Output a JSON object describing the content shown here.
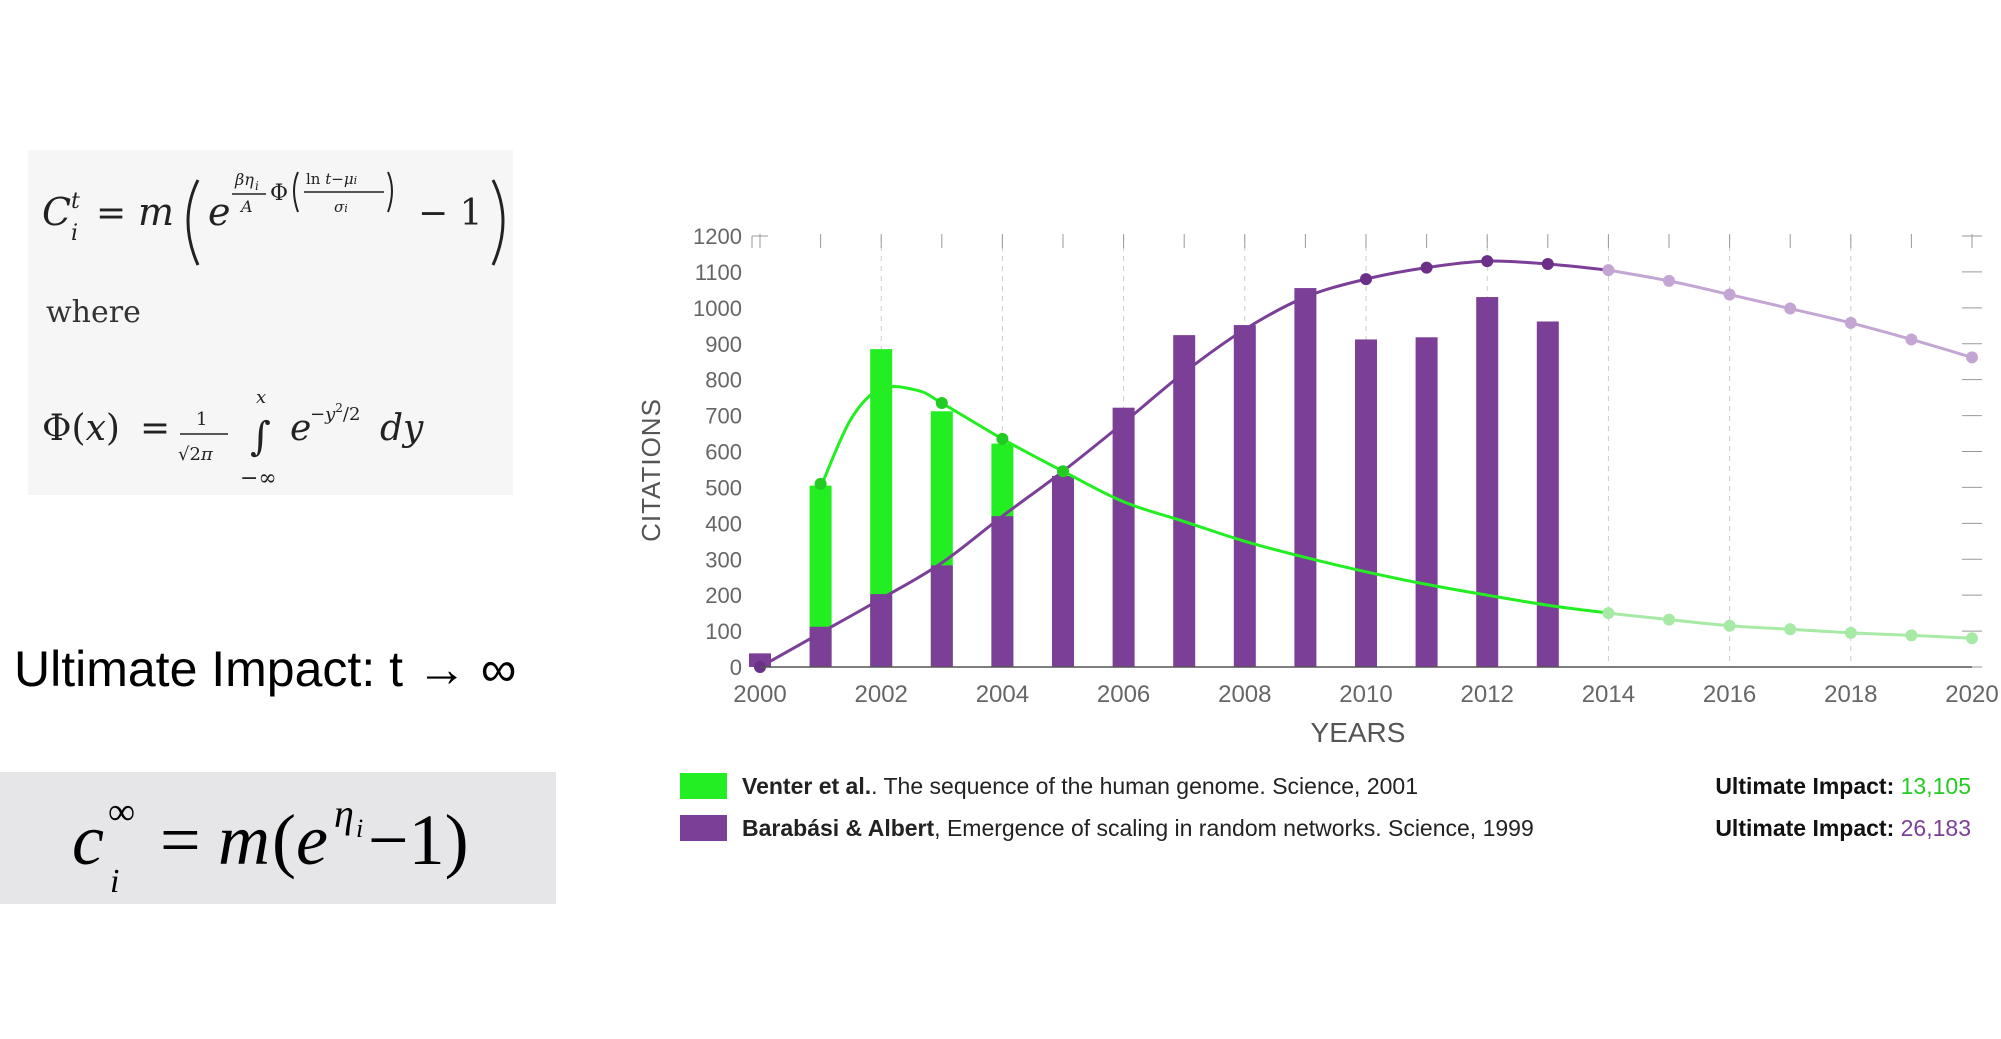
{
  "formulas": {
    "where_label": "where",
    "ultimate_label": "Ultimate Impact: t → ∞"
  },
  "chart_data": {
    "type": "bar",
    "xlabel": "YEARS",
    "ylabel": "CITATIONS",
    "xlim": [
      2000,
      2020
    ],
    "ylim": [
      0,
      1200
    ],
    "x_ticks": [
      2000,
      2002,
      2004,
      2006,
      2008,
      2010,
      2012,
      2014,
      2016,
      2018,
      2020
    ],
    "y_ticks": [
      0,
      100,
      200,
      300,
      400,
      500,
      600,
      700,
      800,
      900,
      1000,
      1100,
      1200
    ],
    "series": [
      {
        "name": "Venter et al.",
        "color": "#22ee22",
        "bars": {
          "x": [
            2001,
            2002,
            2003,
            2004
          ],
          "values": [
            505,
            885,
            712,
            622
          ]
        },
        "fit_points": {
          "x": [
            2001,
            2003,
            2004,
            2005
          ],
          "values": [
            510,
            735,
            635,
            545
          ]
        },
        "projection_points": {
          "x": [
            2014,
            2015,
            2016,
            2017,
            2018,
            2019,
            2020
          ],
          "values": [
            150,
            132,
            115,
            105,
            95,
            88,
            80
          ]
        }
      },
      {
        "name": "Barabási & Albert",
        "color": "#7b3f98",
        "bars": {
          "x": [
            2000,
            2001,
            2002,
            2003,
            2004,
            2005,
            2006,
            2007,
            2008,
            2009,
            2010,
            2011,
            2012,
            2013
          ],
          "values": [
            38,
            112,
            203,
            283,
            420,
            532,
            722,
            924,
            952,
            1055,
            912,
            918,
            1030,
            962
          ]
        },
        "fit_points": {
          "x": [
            2000,
            2010,
            2011,
            2012,
            2013
          ],
          "values": [
            0,
            1080,
            1112,
            1130,
            1122
          ]
        },
        "projection_points": {
          "x": [
            2014,
            2015,
            2016,
            2017,
            2018,
            2019,
            2020
          ],
          "values": [
            1105,
            1075,
            1037,
            998,
            958,
            912,
            862
          ]
        }
      }
    ],
    "legend": [
      {
        "author": "Venter et al.",
        "title": "The sequence of the human genome. Science, 2001",
        "ultimate_label": "Ultimate Impact:",
        "ultimate_value": "13,105",
        "color": "#22ee22"
      },
      {
        "author": "Barabási  & Albert",
        "title": "Emergence of scaling in random networks. Science, 1999",
        "ultimate_label": "Ultimate Impact:",
        "ultimate_value": "26,183",
        "color": "#7b3f98"
      }
    ]
  }
}
